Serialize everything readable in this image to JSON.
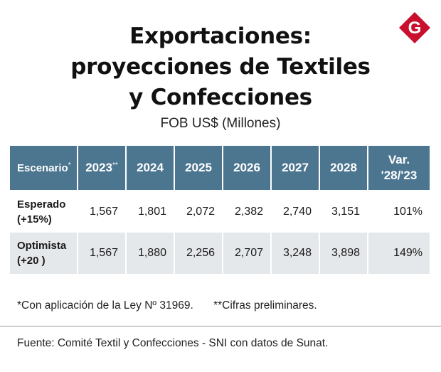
{
  "header": {
    "title_lines": [
      "Exportaciones:",
      "proyecciones de Textiles",
      "y Confecciones"
    ],
    "subtitle": "FOB US$ (Millones)",
    "logo_letter": "G",
    "logo_color": "#c8102e"
  },
  "chart_data": {
    "type": "table",
    "title": "Exportaciones: proyecciones de Textiles y Confecciones",
    "subtitle": "FOB US$ (Millones)",
    "header_color": "#4c7690",
    "columns": [
      {
        "label": "Escenario",
        "mark": "*"
      },
      {
        "label": "2023",
        "mark": "**"
      },
      {
        "label": "2024",
        "mark": ""
      },
      {
        "label": "2025",
        "mark": ""
      },
      {
        "label": "2026",
        "mark": ""
      },
      {
        "label": "2027",
        "mark": ""
      },
      {
        "label": "2028",
        "mark": ""
      },
      {
        "label": "Var. '28/'23",
        "mark": ""
      }
    ],
    "rows": [
      {
        "scenario_line1": "Esperado",
        "scenario_line2": "(+15%)",
        "values": [
          "1,567",
          "1,801",
          "2,072",
          "2,382",
          "2,740",
          "3,151"
        ],
        "variation": "101%"
      },
      {
        "scenario_line1": "Optimista",
        "scenario_line2": "(+20 )",
        "values": [
          "1,567",
          "1,880",
          "2,256",
          "2,707",
          "3,248",
          "3,898"
        ],
        "variation": "149%"
      }
    ]
  },
  "footnotes": {
    "note1": "*Con aplicación de la Ley Nº 31969.",
    "note2": "**Cifras preliminares."
  },
  "source": "Fuente: Comité Textil y Confecciones - SNI con datos de Sunat."
}
